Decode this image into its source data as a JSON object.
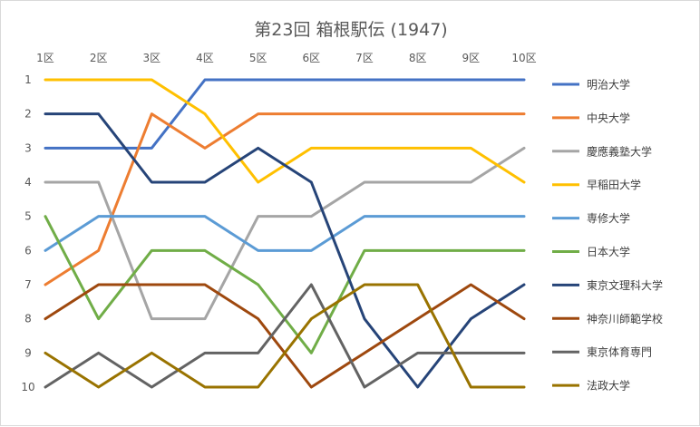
{
  "chart_data": {
    "type": "line",
    "title": "第23回 箱根駅伝 (1947)",
    "categories": [
      "1区",
      "2区",
      "3区",
      "4区",
      "5区",
      "6区",
      "7区",
      "8区",
      "9区",
      "10区"
    ],
    "y_ticks": [
      "1",
      "2",
      "3",
      "4",
      "5",
      "6",
      "7",
      "8",
      "9",
      "10"
    ],
    "ylim": [
      1,
      10
    ],
    "y_reversed": true,
    "x_axis_position": "top",
    "grid": false,
    "legend_position": "right",
    "series": [
      {
        "name": "明治大学",
        "color": "#4472c4",
        "values": [
          3,
          3,
          3,
          1,
          1,
          1,
          1,
          1,
          1,
          1
        ]
      },
      {
        "name": "中央大学",
        "color": "#ed7d31",
        "values": [
          7,
          6,
          2,
          3,
          2,
          2,
          2,
          2,
          2,
          2
        ]
      },
      {
        "name": "慶應義塾大学",
        "color": "#a5a5a5",
        "values": [
          4,
          4,
          8,
          8,
          5,
          5,
          4,
          4,
          4,
          3
        ]
      },
      {
        "name": "早稲田大学",
        "color": "#ffc000",
        "values": [
          1,
          1,
          1,
          2,
          4,
          3,
          3,
          3,
          3,
          4
        ]
      },
      {
        "name": "専修大学",
        "color": "#5b9bd5",
        "values": [
          6,
          5,
          5,
          5,
          6,
          6,
          5,
          5,
          5,
          5
        ]
      },
      {
        "name": "日本大学",
        "color": "#70ad47",
        "values": [
          5,
          8,
          6,
          6,
          7,
          9,
          6,
          6,
          6,
          6
        ]
      },
      {
        "name": "東京文理科大学",
        "color": "#264478",
        "values": [
          2,
          2,
          4,
          4,
          3,
          4,
          8,
          10,
          8,
          7
        ]
      },
      {
        "name": "神奈川師範学校",
        "color": "#9e480e",
        "values": [
          8,
          7,
          7,
          7,
          8,
          10,
          9,
          8,
          7,
          8
        ]
      },
      {
        "name": "東京体育専門",
        "color": "#636363",
        "values": [
          10,
          9,
          10,
          9,
          9,
          7,
          10,
          9,
          9,
          9
        ]
      },
      {
        "name": "法政大学",
        "color": "#997300",
        "values": [
          9,
          10,
          9,
          10,
          10,
          8,
          7,
          7,
          10,
          10
        ]
      }
    ]
  }
}
